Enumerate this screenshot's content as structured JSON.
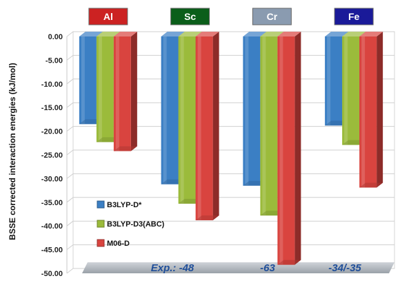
{
  "chart_data": {
    "type": "bar",
    "ylabel": "BSSE corrected interaction energies (kJ/mol)",
    "ylim": [
      -50,
      0
    ],
    "yticks": [
      "0.00",
      "-5.00",
      "-10.00",
      "-15.00",
      "-20.00",
      "-25.00",
      "-30.00",
      "-35.00",
      "-40.00",
      "-45.00",
      "-50.00"
    ],
    "grid": true,
    "legend_placement": "lower-left",
    "categories": [
      "Al",
      "Sc",
      "Cr",
      "Fe"
    ],
    "category_colors": [
      "#cc2222",
      "#0b5e1a",
      "#8a9bb0",
      "#1a1a99"
    ],
    "series": [
      {
        "name": "B3LYP-D*",
        "color": "#3b7fc4",
        "values": [
          -18.5,
          -31.2,
          -31.5,
          -18.8
        ]
      },
      {
        "name": "B3LYP-D3(ABC)",
        "color": "#9bbb3b",
        "values": [
          -22.3,
          -35.3,
          -37.8,
          -22.9
        ]
      },
      {
        "name": "M06-D",
        "color": "#d9443f",
        "values": [
          -24.2,
          -38.8,
          -48.2,
          -31.9
        ]
      }
    ],
    "annotations": [
      "Exp.:  -48",
      "-63",
      "-34/-35"
    ]
  }
}
